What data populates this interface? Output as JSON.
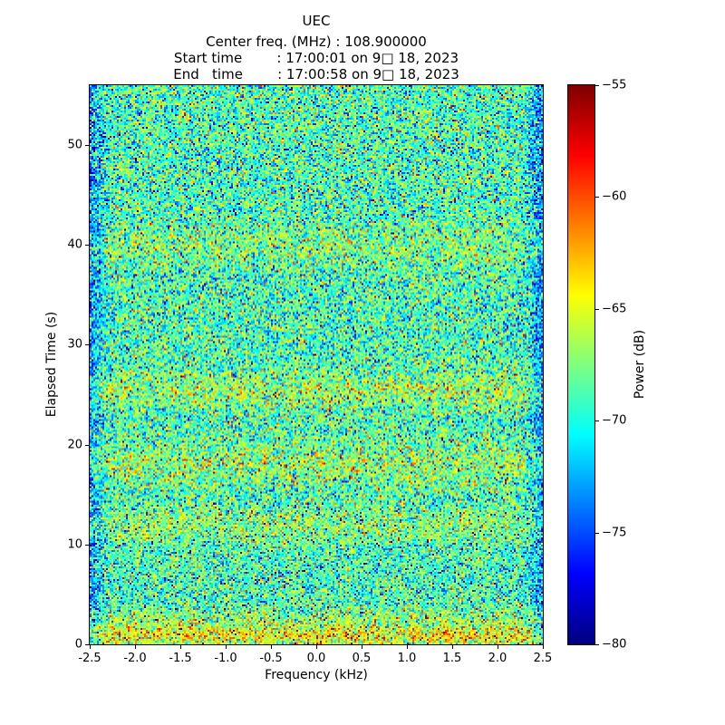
{
  "header": {
    "title": "UEC",
    "lines": [
      "Center freq. (MHz) : 108.900000",
      "Start time        : 17:00:01 on 9□ 18, 2023",
      "End   time        : 17:00:58 on 9□ 18, 2023"
    ]
  },
  "chart_data": {
    "type": "heatmap",
    "title": "UEC",
    "xlabel": "Frequency (kHz)",
    "ylabel": "Elapsed Time (s)",
    "xlim": [
      -2.5,
      2.5
    ],
    "ylim": [
      0,
      56
    ],
    "x_ticks": [
      -2.5,
      -2.0,
      -1.5,
      -1.0,
      -0.5,
      0.0,
      0.5,
      1.0,
      1.5,
      2.0,
      2.5
    ],
    "x_tick_labels": [
      "-2.5",
      "-2.0",
      "-1.5",
      "-1.0",
      "-0.5",
      "0.0",
      "0.5",
      "1.0",
      "1.5",
      "2.0",
      "2.5"
    ],
    "y_ticks": [
      0,
      10,
      20,
      30,
      40,
      50
    ],
    "y_tick_labels": [
      "0",
      "10",
      "20",
      "30",
      "40",
      "50"
    ],
    "grid": false,
    "colorbar": {
      "label": "Power (dB)",
      "min": -80,
      "max": -55,
      "ticks": [
        -55,
        -60,
        -65,
        -70,
        -75,
        -80
      ],
      "tick_labels": [
        "−55",
        "−60",
        "−65",
        "−70",
        "−75",
        "−80"
      ],
      "colormap": "jet",
      "position": "right"
    },
    "noise": {
      "description": "broadband random noise floor rendered as jet-colormap speckle",
      "seed": 1337,
      "cols": 250,
      "rows": 308,
      "mean_db": -69.0,
      "std_db": 3.4,
      "edge_drop_db": 4,
      "edge_frac": 0.03,
      "bands": [
        {
          "elapsed_s": 0.8,
          "sigma_s": 0.7,
          "boost_db": 4.5
        },
        {
          "elapsed_s": 2.5,
          "sigma_s": 0.8,
          "boost_db": 2.0
        },
        {
          "elapsed_s": 12.0,
          "sigma_s": 1.2,
          "boost_db": 1.8
        },
        {
          "elapsed_s": 18.0,
          "sigma_s": 1.5,
          "boost_db": 2.2
        },
        {
          "elapsed_s": 25.5,
          "sigma_s": 1.2,
          "boost_db": 2.4
        },
        {
          "elapsed_s": 40.0,
          "sigma_s": 1.5,
          "boost_db": 1.4
        }
      ]
    }
  }
}
